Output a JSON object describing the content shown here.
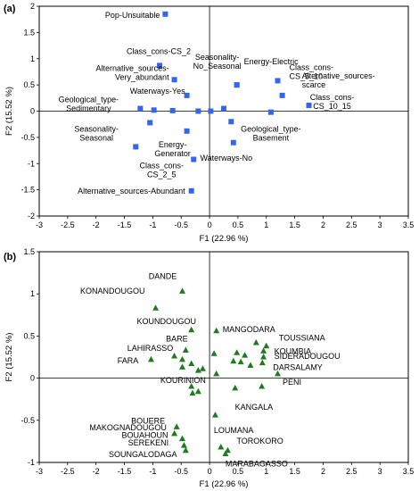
{
  "chart_data": [
    {
      "type": "scatter",
      "panel_label": "(a)",
      "xlabel": "F1 (22.96 %)",
      "ylabel": "F2 (15.52 %)",
      "xlim": [
        -3,
        3.5
      ],
      "ylim": [
        -2,
        2
      ],
      "xticks": [
        -3,
        -2.5,
        -2,
        -1.5,
        -1,
        -0.5,
        0,
        0.5,
        1,
        1.5,
        2,
        2.5,
        3,
        3.5
      ],
      "yticks": [
        -2,
        -1.5,
        -1,
        -0.5,
        0,
        0.5,
        1,
        1.5,
        2
      ],
      "marker_color": "#3366ee",
      "marker": "square",
      "points": [
        {
          "label": "Pop-Unsuitable",
          "x": -0.78,
          "y": 1.85
        },
        {
          "label": "Class_cons-CS_2",
          "x": -0.88,
          "y": 0.87
        },
        {
          "label": "Alternative_sources-Very_abundant",
          "x": -0.62,
          "y": 0.6
        },
        {
          "label": "Waterways-Yes",
          "x": -0.4,
          "y": 0.3
        },
        {
          "label": "Seasonality-No_Seasonal",
          "x": 0.48,
          "y": 0.5
        },
        {
          "label": "Energy-Electric",
          "x": 0.48,
          "y": 0.5
        },
        {
          "label": "Class_cons-CS_5_10",
          "x": 1.2,
          "y": 0.58
        },
        {
          "label": "Alternative_sources-scarce",
          "x": 1.28,
          "y": 0.3
        },
        {
          "label": "Class_cons-CS_10_15",
          "x": 1.75,
          "y": 0.11
        },
        {
          "label": "Geological_type-Sedimentary",
          "x": -1.22,
          "y": 0.05
        },
        {
          "label": "",
          "x": -0.98,
          "y": 0.02
        },
        {
          "label": "",
          "x": -0.65,
          "y": 0.01
        },
        {
          "label": "",
          "x": -0.2,
          "y": 0.0
        },
        {
          "label": "",
          "x": 0.02,
          "y": 0.0
        },
        {
          "label": "",
          "x": 0.25,
          "y": 0.05
        },
        {
          "label": "",
          "x": 0.38,
          "y": -0.2
        },
        {
          "label": "Geological_type-Basement",
          "x": 1.08,
          "y": -0.02
        },
        {
          "label": "Seasonality-Seasonal",
          "x": -1.05,
          "y": -0.22
        },
        {
          "label": "",
          "x": -1.3,
          "y": -0.68
        },
        {
          "label": "Energy-Generator",
          "x": -0.4,
          "y": -0.38
        },
        {
          "label": "Waterways-No",
          "x": 0.42,
          "y": -0.6
        },
        {
          "label": "Class_cons-CS_2_5",
          "x": -0.28,
          "y": -0.92
        },
        {
          "label": "Alternative_sources-Abundant",
          "x": -0.32,
          "y": -1.52
        }
      ]
    },
    {
      "type": "scatter",
      "panel_label": "(b)",
      "xlabel": "F1 (22.96 %)",
      "ylabel": "F2 (15.52 %)",
      "xlim": [
        -3,
        3.5
      ],
      "ylim": [
        -1,
        1.5
      ],
      "xticks": [
        -3,
        -2.5,
        -2,
        -1.5,
        -1,
        -0.5,
        0,
        0.5,
        1,
        1.5,
        2,
        2.5,
        3,
        3.5
      ],
      "yticks": [
        -1,
        -0.5,
        0,
        0.5,
        1,
        1.5
      ],
      "marker_color": "#1f7a1f",
      "marker": "triangle",
      "points": [
        {
          "label": "DANDE",
          "x": -0.48,
          "y": 1.03
        },
        {
          "label": "KONANDOUGOU",
          "x": -0.95,
          "y": 0.83
        },
        {
          "label": "KOUNDOUGOU",
          "x": -0.32,
          "y": 0.57
        },
        {
          "label": "",
          "x": 0.12,
          "y": 0.56
        },
        {
          "label": "BARE",
          "x": -0.42,
          "y": 0.33
        },
        {
          "label": "",
          "x": -0.62,
          "y": 0.26
        },
        {
          "label": "LAHIRASSO",
          "x": -0.48,
          "y": 0.22
        },
        {
          "label": "FARA",
          "x": -1.03,
          "y": 0.22
        },
        {
          "label": "",
          "x": -0.32,
          "y": 0.17
        },
        {
          "label": "",
          "x": -0.48,
          "y": 0.13
        },
        {
          "label": "",
          "x": -0.12,
          "y": 0.11
        },
        {
          "label": "KOURINION",
          "x": -0.2,
          "y": 0.09
        },
        {
          "label": "",
          "x": 0.08,
          "y": 0.29
        },
        {
          "label": "",
          "x": 0.12,
          "y": 0.05
        },
        {
          "label": "",
          "x": 0.48,
          "y": 0.3
        },
        {
          "label": "",
          "x": 0.42,
          "y": 0.2
        },
        {
          "label": "",
          "x": 0.55,
          "y": 0.19
        },
        {
          "label": "",
          "x": 0.62,
          "y": 0.27
        },
        {
          "label": "",
          "x": 0.72,
          "y": 0.15
        },
        {
          "label": "MANGODARA",
          "x": 0.82,
          "y": 0.42
        },
        {
          "label": "TOUSSIANA",
          "x": 1.0,
          "y": 0.38
        },
        {
          "label": "KOUMBIA",
          "x": 0.95,
          "y": 0.32
        },
        {
          "label": "SIDERADOUGOU",
          "x": 0.95,
          "y": 0.25
        },
        {
          "label": "DARSALAMY",
          "x": 0.93,
          "y": 0.18
        },
        {
          "label": "PENI",
          "x": 1.2,
          "y": 0.05
        },
        {
          "label": "",
          "x": 0.45,
          "y": -0.12
        },
        {
          "label": "KANGALA",
          "x": 0.92,
          "y": -0.1
        },
        {
          "label": "",
          "x": -0.32,
          "y": -0.1
        },
        {
          "label": "",
          "x": -0.3,
          "y": -0.18
        },
        {
          "label": "",
          "x": -0.2,
          "y": -0.16
        },
        {
          "label": "",
          "x": 0.1,
          "y": -0.44
        },
        {
          "label": "BOUERE",
          "x": -0.58,
          "y": -0.58
        },
        {
          "label": "MAKOGNADOUGOU",
          "x": -0.62,
          "y": -0.66
        },
        {
          "label": "BOUAHOUN",
          "x": -0.48,
          "y": -0.72
        },
        {
          "label": "SEREKENI",
          "x": -0.45,
          "y": -0.8
        },
        {
          "label": "SOUNGALODAGA",
          "x": -0.42,
          "y": -0.86
        },
        {
          "label": "LOUMANA",
          "x": 0.2,
          "y": -0.82
        },
        {
          "label": "TOROKORO",
          "x": 0.32,
          "y": -0.86
        },
        {
          "label": "MARABAGASSO",
          "x": 0.28,
          "y": -0.9
        }
      ]
    }
  ]
}
